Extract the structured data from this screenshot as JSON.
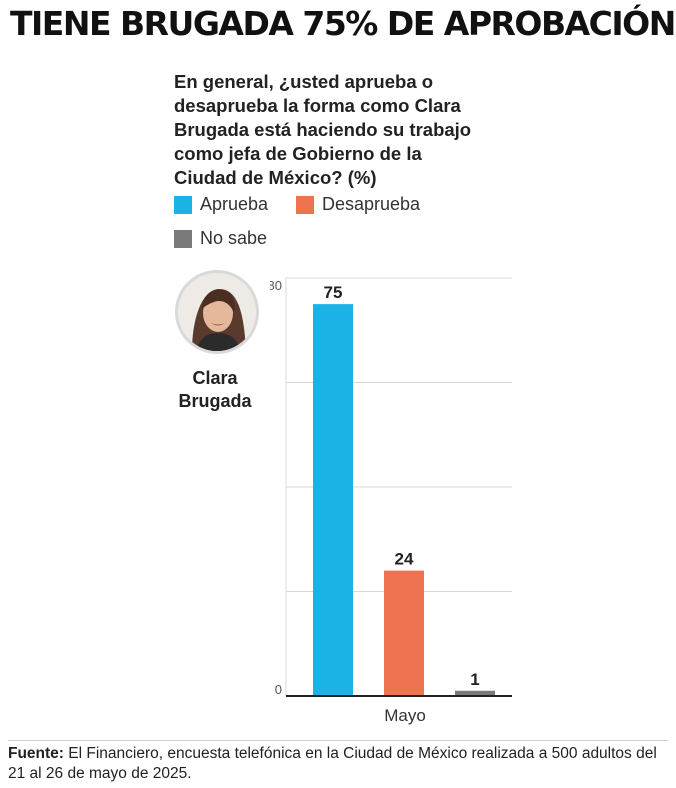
{
  "headline": "TIENE BRUGADA 75% DE APROBACIÓN",
  "question": "En general, ¿usted aprueba o desaprueba la forma como Clara Brugada está haciendo su trabajo como jefa de Gobierno de la Ciudad de México? (%)",
  "person": {
    "name": "Clara Brugada",
    "photo_icon": "portrait-photo"
  },
  "source": {
    "label": "Fuente:",
    "text": "El Financiero, encuesta telefónica en la Ciudad de México realizada a 500 adultos del 21 al 26 de mayo de 2025."
  },
  "colors": {
    "aprueba": "#1bb3e6",
    "desaprueba": "#ee7350",
    "no_sabe": "#7a7a7a"
  },
  "chart_data": {
    "type": "bar",
    "categories": [
      "Mayo"
    ],
    "series": [
      {
        "name": "Aprueba",
        "values": [
          75
        ],
        "color": "#1bb3e6"
      },
      {
        "name": "Desaprueba",
        "values": [
          24
        ],
        "color": "#ee7350"
      },
      {
        "name": "No sabe",
        "values": [
          1
        ],
        "color": "#7a7a7a"
      }
    ],
    "ylim": [
      0,
      80
    ],
    "yticks": [
      0,
      80
    ],
    "xlabel": "Mayo",
    "ylabel": "",
    "grid": true,
    "legend": "top-left"
  }
}
